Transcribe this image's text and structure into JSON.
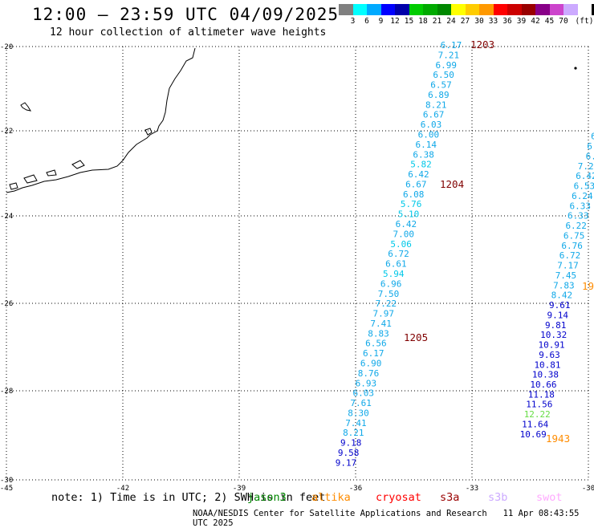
{
  "header": {
    "title": "12:00 – 23:59 UTC 04/09/2025",
    "subtitle": "12 hour collection of altimeter wave heights"
  },
  "colorbar": {
    "unit_label": "(ft)",
    "swatches": [
      "#808080",
      "#00ffff",
      "#00aaff",
      "#0000ff",
      "#0000aa",
      "#00cc00",
      "#00aa00",
      "#008800",
      "#ffff00",
      "#ffcc00",
      "#ff9900",
      "#ff0000",
      "#cc0000",
      "#990000",
      "#880088",
      "#cc44cc",
      "#ccaaff",
      "#ffffff",
      "#000000"
    ],
    "labels": [
      "3",
      "6",
      "9",
      "12",
      "15",
      "18",
      "21",
      "24",
      "27",
      "30",
      "33",
      "36",
      "39",
      "42",
      "45",
      "70"
    ]
  },
  "map": {
    "lon_labels": [
      "-45",
      "-42",
      "-39",
      "-36",
      "-33",
      "-30"
    ],
    "lat_labels": [
      "-20",
      "-22",
      "-24",
      "-26",
      "-28",
      "-30"
    ],
    "track_labels": [
      {
        "text": "1203",
        "color": "#800000"
      },
      {
        "text": "1204",
        "color": "#800000"
      },
      {
        "text": "1205",
        "color": "#800000"
      },
      {
        "text": "1943",
        "color": "#ff8c00"
      },
      {
        "text": "19",
        "color": "#ff8c00"
      }
    ],
    "track1_values": [
      "6.17",
      "7.21",
      "6.99",
      "6.50",
      "6.57",
      "6.89",
      "8.21",
      "6.67",
      "6.03",
      "6.00",
      "6.14",
      "6.38",
      "5.82",
      "6.42",
      "6.67",
      "6.08",
      "5.76",
      "5.10",
      "6.42",
      "7.00",
      "5.06",
      "6.72",
      "6.61",
      "5.94",
      "6.96",
      "7.50",
      "7.22",
      "7.97",
      "7.41",
      "8.83",
      "6.56",
      "6.17",
      "6.90",
      "8.76",
      "6.93",
      "6.03",
      "7.61",
      "8.30",
      "7.41",
      "8.21",
      "9.18",
      "9.58",
      "9.17"
    ],
    "track2_values": [
      "6",
      "6",
      "6.",
      "6.4",
      "6.7",
      "7.24",
      "6.42",
      "6.53",
      "6.24",
      "6.33",
      "6.33",
      "6.22",
      "6.75",
      "6.76",
      "6.72",
      "7.17",
      "7.45",
      "7.83",
      "8.42",
      "9.61",
      "9.14",
      "9.81",
      "10.32",
      "10.91",
      "9.63",
      "10.81",
      "10.38",
      "10.66",
      "11.18",
      "11.56",
      "12.22",
      "11.64",
      "10.69"
    ]
  },
  "footer": {
    "note": "note:  1) Time is in UTC;  2) SWH is in feet",
    "legend": [
      {
        "name": "jason3",
        "color": "#008800"
      },
      {
        "name": "altika",
        "color": "#ff8c00"
      },
      {
        "name": "cryosat",
        "color": "#ff0000"
      },
      {
        "name": "s3a",
        "color": "#990000"
      },
      {
        "name": "s3b",
        "color": "#ccaaff"
      },
      {
        "name": "swot",
        "color": "#ffaaff"
      }
    ],
    "credit": "NOAA/NESDIS Center for Satellite Applications and Research",
    "timestamp": "11 Apr 08:43:55 UTC 2025"
  }
}
